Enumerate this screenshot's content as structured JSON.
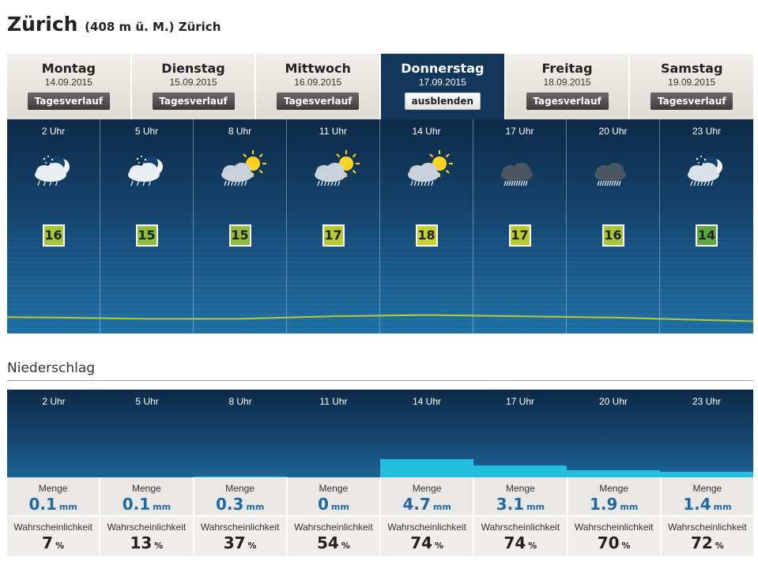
{
  "location": {
    "name": "Zürich",
    "detail": "(408 m ü. M.) Zürich"
  },
  "days": [
    {
      "day": "Montag",
      "date": "14.09.2015",
      "button": "Tagesverlauf",
      "active": false
    },
    {
      "day": "Dienstag",
      "date": "15.09.2015",
      "button": "Tagesverlauf",
      "active": false
    },
    {
      "day": "Mittwoch",
      "date": "16.09.2015",
      "button": "Tagesverlauf",
      "active": false
    },
    {
      "day": "Donnerstag",
      "date": "17.09.2015",
      "button": "ausblenden",
      "active": true
    },
    {
      "day": "Freitag",
      "date": "18.09.2015",
      "button": "Tagesverlauf",
      "active": false
    },
    {
      "day": "Samstag",
      "date": "19.09.2015",
      "button": "Tagesverlauf",
      "active": false
    }
  ],
  "hourly": [
    {
      "hour": "2 Uhr",
      "temp": "16",
      "icon": "moon-cloud-light-rain-icon",
      "temp_color": "#a5c53a"
    },
    {
      "hour": "5 Uhr",
      "temp": "15",
      "icon": "moon-cloud-light-rain-icon",
      "temp_color": "#8fbd3f"
    },
    {
      "hour": "8 Uhr",
      "temp": "15",
      "icon": "sun-cloud-rain-icon",
      "temp_color": "#8fbd3f"
    },
    {
      "hour": "11 Uhr",
      "temp": "17",
      "icon": "sun-cloud-rain-icon",
      "temp_color": "#b7cc32"
    },
    {
      "hour": "14 Uhr",
      "temp": "18",
      "icon": "sun-cloud-rain-icon",
      "temp_color": "#c4d12e"
    },
    {
      "hour": "17 Uhr",
      "temp": "17",
      "icon": "dark-cloud-heavy-rain-icon",
      "temp_color": "#b7cc32"
    },
    {
      "hour": "20 Uhr",
      "temp": "16",
      "icon": "dark-cloud-heavy-rain-icon",
      "temp_color": "#a5c53a"
    },
    {
      "hour": "23 Uhr",
      "temp": "14",
      "icon": "moon-cloud-rain-icon",
      "temp_color": "#5fa542"
    }
  ],
  "precipitation": {
    "title": "Niederschlag",
    "amount_label": "Menge",
    "probability_label": "Wahrscheinlichkeit",
    "amount_unit": "mm",
    "probability_unit": "%",
    "slots": [
      {
        "hour": "2 Uhr",
        "amount": "0.1",
        "amount_value": 0.1,
        "probability": "7"
      },
      {
        "hour": "5 Uhr",
        "amount": "0.1",
        "amount_value": 0.1,
        "probability": "13"
      },
      {
        "hour": "8 Uhr",
        "amount": "0.3",
        "amount_value": 0.3,
        "probability": "37"
      },
      {
        "hour": "11 Uhr",
        "amount": "0",
        "amount_value": 0,
        "probability": "54"
      },
      {
        "hour": "14 Uhr",
        "amount": "4.7",
        "amount_value": 4.7,
        "probability": "74"
      },
      {
        "hour": "17 Uhr",
        "amount": "3.1",
        "amount_value": 3.1,
        "probability": "74"
      },
      {
        "hour": "20 Uhr",
        "amount": "1.9",
        "amount_value": 1.9,
        "probability": "70"
      },
      {
        "hour": "23 Uhr",
        "amount": "1.4",
        "amount_value": 1.4,
        "probability": "72"
      }
    ]
  }
}
